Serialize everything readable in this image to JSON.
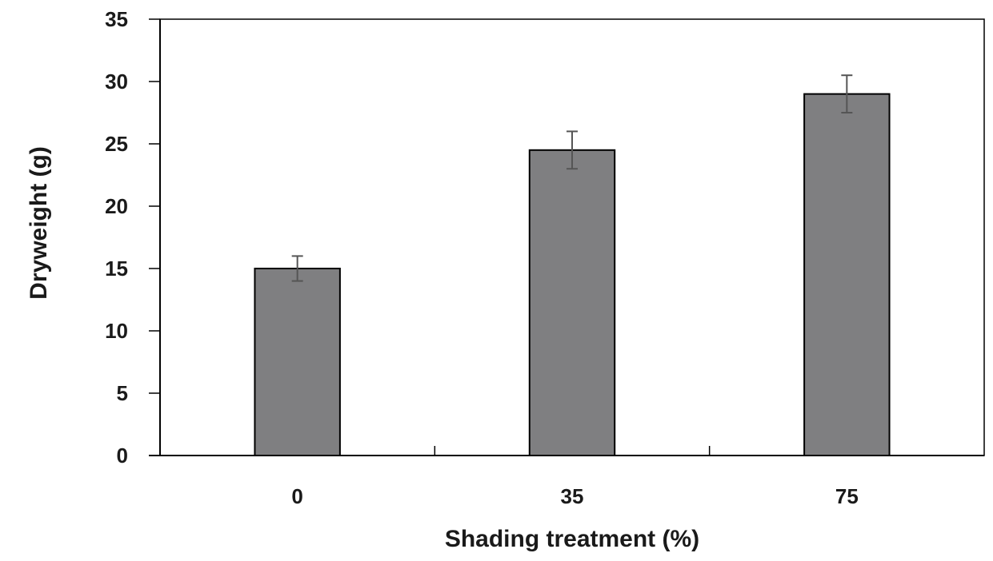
{
  "chart_data": {
    "type": "bar",
    "title": "",
    "xlabel": "Shading treatment (%)",
    "ylabel": "Dryweight (g)",
    "categories": [
      "0",
      "35",
      "75"
    ],
    "values": [
      15,
      24.5,
      29
    ],
    "error": [
      1,
      1.5,
      1.5
    ],
    "ylim": [
      0,
      35
    ],
    "yticks": [
      "0",
      "5",
      "10",
      "15",
      "20",
      "25",
      "30",
      "35"
    ],
    "grid": false,
    "legend": "none",
    "bar_color": "#7f7f81",
    "error_color": "#555555"
  }
}
